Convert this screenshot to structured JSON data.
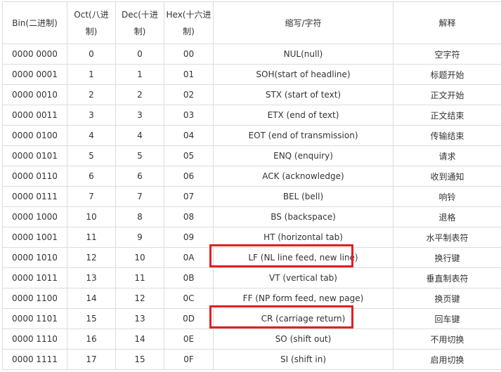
{
  "table": {
    "headers": [
      "Bin(二进制)",
      "Oct(八进制)",
      "Dec(十进制)",
      "Hex(十六进制)",
      "缩写/字符",
      "解释"
    ],
    "rows": [
      [
        "0000 0000",
        "0",
        "0",
        "00",
        "NUL(null)",
        "空字符"
      ],
      [
        "0000 0001",
        "1",
        "1",
        "01",
        "SOH(start of headline)",
        "标题开始"
      ],
      [
        "0000 0010",
        "2",
        "2",
        "02",
        "STX (start of text)",
        "正文开始"
      ],
      [
        "0000 0011",
        "3",
        "3",
        "03",
        "ETX (end of text)",
        "正文结束"
      ],
      [
        "0000 0100",
        "4",
        "4",
        "04",
        "EOT (end of transmission)",
        "传输结束"
      ],
      [
        "0000 0101",
        "5",
        "5",
        "05",
        "ENQ (enquiry)",
        "请求"
      ],
      [
        "0000 0110",
        "6",
        "6",
        "06",
        "ACK (acknowledge)",
        "收到通知"
      ],
      [
        "0000 0111",
        "7",
        "7",
        "07",
        "BEL (bell)",
        "响铃"
      ],
      [
        "0000 1000",
        "10",
        "8",
        "08",
        "BS (backspace)",
        "退格"
      ],
      [
        "0000 1001",
        "11",
        "9",
        "09",
        "HT (horizontal tab)",
        "水平制表符"
      ],
      [
        "0000 1010",
        "12",
        "10",
        "0A",
        "LF (NL line feed, new line)",
        "换行键"
      ],
      [
        "0000 1011",
        "13",
        "11",
        "0B",
        "VT (vertical tab)",
        "垂直制表符"
      ],
      [
        "0000 1100",
        "14",
        "12",
        "0C",
        "FF (NP form feed, new page)",
        "换页键"
      ],
      [
        "0000 1101",
        "15",
        "13",
        "0D",
        "CR (carriage return)",
        "回车键"
      ],
      [
        "0000 1110",
        "16",
        "14",
        "0E",
        "SO (shift out)",
        "不用切换"
      ],
      [
        "0000 1111",
        "17",
        "15",
        "0F",
        "SI (shift in)",
        "启用切换"
      ]
    ],
    "highlighted_rows": [
      10,
      13
    ],
    "highlight_color": "#e02020",
    "border_color": "#dcdcdc",
    "text_color": "#333333"
  }
}
